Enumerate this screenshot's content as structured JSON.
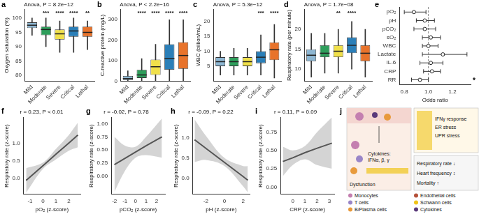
{
  "chart_data": [
    {
      "panel": "a",
      "type": "box",
      "title": "Anova, P = 8.2e−12",
      "y_label": "Oxygen saturation (%)",
      "categories": [
        "Mild",
        "Moderate",
        "Severe",
        "Critical",
        "Lethal"
      ],
      "colors": [
        "#8db6d2",
        "#2e9e5b",
        "#f0e04a",
        "#2b7fb8",
        "#e8732b"
      ],
      "boxes": [
        {
          "whisker_low": 94,
          "q1": 96.5,
          "median": 97.5,
          "q3": 98.5,
          "whisker_high": 100
        },
        {
          "whisker_low": 90,
          "q1": 94,
          "median": 96,
          "q3": 97,
          "whisker_high": 100
        },
        {
          "whisker_low": 88,
          "q1": 92.5,
          "median": 94.5,
          "q3": 96,
          "whisker_high": 99
        },
        {
          "whisker_low": 88,
          "q1": 93.5,
          "median": 95.5,
          "q3": 97,
          "whisker_high": 100
        },
        {
          "whisker_low": 89,
          "q1": 93.5,
          "median": 95,
          "q3": 97,
          "whisker_high": 99
        }
      ],
      "significance": [
        "",
        "***",
        "****",
        "****",
        "**"
      ],
      "ylim": [
        78,
        103
      ],
      "yticks": [
        80,
        85,
        90,
        95,
        100
      ]
    },
    {
      "panel": "b",
      "type": "box",
      "title": "Anova, P < 2.2e−16",
      "y_label": "C-reactive protein (mg/L)",
      "categories": [
        "Mild",
        "Moderate",
        "Severe",
        "Critical",
        "Lethal"
      ],
      "colors": [
        "#8db6d2",
        "#2e9e5b",
        "#f0e04a",
        "#2b7fb8",
        "#e8732b"
      ],
      "boxes": [
        {
          "whisker_low": 0,
          "q1": 5,
          "median": 12,
          "q3": 25,
          "whisker_high": 50
        },
        {
          "whisker_low": 0,
          "q1": 15,
          "median": 30,
          "q3": 55,
          "whisker_high": 110
        },
        {
          "whisker_low": 0,
          "q1": 30,
          "median": 70,
          "q3": 105,
          "whisker_high": 180
        },
        {
          "whisker_low": 0,
          "q1": 55,
          "median": 110,
          "q3": 180,
          "whisker_high": 300
        },
        {
          "whisker_low": 0,
          "q1": 60,
          "median": 125,
          "q3": 190,
          "whisker_high": 300
        }
      ],
      "significance": [
        "",
        "****",
        "****",
        "****",
        "****"
      ],
      "ylim": [
        0,
        350
      ],
      "yticks": [
        0,
        100,
        200,
        300
      ]
    },
    {
      "panel": "c",
      "type": "box",
      "title": "Anova, P = 5.3e−12",
      "y_label": "WBC (billion/mL)",
      "categories": [
        "Mild",
        "Moderate",
        "Severe",
        "Critical",
        "Lethal"
      ],
      "colors": [
        "#8db6d2",
        "#2e9e5b",
        "#f0e04a",
        "#2b7fb8",
        "#e8732b"
      ],
      "boxes": [
        {
          "whisker_low": 2,
          "q1": 5,
          "median": 6.5,
          "q3": 8,
          "whisker_high": 10
        },
        {
          "whisker_low": 2,
          "q1": 5,
          "median": 6.5,
          "q3": 8,
          "whisker_high": 11
        },
        {
          "whisker_low": 2,
          "q1": 5,
          "median": 6.5,
          "q3": 8,
          "whisker_high": 11
        },
        {
          "whisker_low": 2,
          "q1": 6,
          "median": 8,
          "q3": 10,
          "whisker_high": 15.5
        },
        {
          "whisker_low": 1,
          "q1": 7,
          "median": 10.5,
          "q3": 13,
          "whisker_high": 19
        }
      ],
      "significance": [
        "",
        "",
        "",
        "***",
        "****"
      ],
      "ylim": [
        0,
        24
      ],
      "yticks": [
        5,
        10,
        15,
        20
      ]
    },
    {
      "panel": "d",
      "type": "box",
      "title": "Anova, P = 1.7e−08",
      "y_label": "Respiratory rate (per minute)",
      "categories": [
        "Mild",
        "Moderate",
        "Severe",
        "Critical",
        "Lethal"
      ],
      "colors": [
        "#8db6d2",
        "#2e9e5b",
        "#f0e04a",
        "#2b7fb8",
        "#e8732b"
      ],
      "boxes": [
        {
          "whisker_low": 8,
          "q1": 12,
          "median": 13.5,
          "q3": 15,
          "whisker_high": 19
        },
        {
          "whisker_low": 9,
          "q1": 13,
          "median": 14,
          "q3": 16,
          "whisker_high": 19
        },
        {
          "whisker_low": 9,
          "q1": 13,
          "median": 14.5,
          "q3": 16,
          "whisker_high": 20
        },
        {
          "whisker_low": 10,
          "q1": 14,
          "median": 16,
          "q3": 18,
          "whisker_high": 22
        },
        {
          "whisker_low": 8,
          "q1": 12,
          "median": 14,
          "q3": 16,
          "whisker_high": 20
        }
      ],
      "significance": [
        "",
        "",
        "**",
        "****",
        ""
      ],
      "ylim": [
        7,
        25
      ],
      "yticks": [
        10,
        15,
        20
      ]
    },
    {
      "panel": "e",
      "type": "forest",
      "x_label": "Odds ratio",
      "categories": [
        "pO₂",
        "pH",
        "pCO₂",
        "sO₂",
        "WBC",
        "Lactate",
        "IL-6",
        "CRP",
        "RR"
      ],
      "values": [
        0.88,
        0.97,
        0.97,
        1.02,
        1.0,
        1.12,
        1.02,
        1.03,
        0.93
      ],
      "ci_lower": [
        0.8,
        0.9,
        0.88,
        0.95,
        0.95,
        0.95,
        0.93,
        0.96,
        0.86
      ],
      "ci_upper": [
        0.98,
        1.05,
        1.06,
        1.1,
        1.08,
        1.32,
        1.12,
        1.1,
        1.0
      ],
      "significance": [
        "",
        "",
        "",
        "",
        "",
        "",
        "",
        "",
        "*"
      ],
      "reference_line": 1,
      "xlim": [
        0.76,
        1.35
      ],
      "xticks": [
        {
          "value": 0.8,
          "label": "0.8"
        },
        {
          "value": 1.0,
          "label": "1.0"
        },
        {
          "value": 1.2,
          "label": "1.2"
        }
      ]
    },
    {
      "panel": "f",
      "type": "regression",
      "title": "r = 0.23, P < 0.01",
      "x_label": "pO₂ (z-score)",
      "y_label": "Respiratory rate (z-score)",
      "x": [
        -1.3,
        0,
        1,
        2,
        2.7
      ],
      "values": [
        -0.05,
        0.37,
        0.7,
        1.02,
        1.25
      ],
      "ci_lower": [
        -0.4,
        0.28,
        0.55,
        0.8,
        0.9
      ],
      "ci_upper": [
        0.3,
        0.46,
        0.85,
        1.25,
        1.6
      ],
      "xlim": [
        -1.5,
        2.9
      ],
      "xticks": [
        -1,
        0,
        1,
        2
      ],
      "ylim": [
        -0.45,
        1.75
      ],
      "yticks": [
        {
          "value": 0,
          "label": "0.0"
        },
        {
          "value": 0.5,
          "label": "0.5"
        },
        {
          "value": 1,
          "label": "1.0"
        }
      ]
    },
    {
      "panel": "g",
      "type": "regression",
      "title": "r = -0.02, P = 0.78",
      "x_label": "pCO₂ (z-score)",
      "y_label": "Respiratory rate (z-score)",
      "x": [
        -2,
        -1,
        0,
        1,
        2.5
      ],
      "values": [
        0.22,
        0.34,
        0.46,
        0.58,
        0.75
      ],
      "ci_lower": [
        -0.3,
        0.1,
        0.35,
        0.4,
        0.35
      ],
      "ci_upper": [
        0.75,
        0.58,
        0.56,
        0.75,
        1.1
      ],
      "xlim": [
        -2.3,
        2.8
      ],
      "xticks": [
        -2,
        -1,
        0,
        1,
        2
      ],
      "ylim": [
        -0.35,
        1.12
      ],
      "yticks": [
        {
          "value": 0,
          "label": "0.00"
        },
        {
          "value": 0.25,
          "label": "0.25"
        },
        {
          "value": 0.5,
          "label": "0.50"
        },
        {
          "value": 0.75,
          "label": "0.75"
        },
        {
          "value": 1,
          "label": "1.00"
        }
      ]
    },
    {
      "panel": "h",
      "type": "regression",
      "title": "r = -0.09, P = 0.22",
      "x_label": "pH (z-score)",
      "y_label": "Respiratory rate (z-score)",
      "x": [
        -3.2,
        -2,
        0,
        2,
        2.5
      ],
      "values": [
        0.95,
        0.74,
        0.39,
        0.04,
        -0.05
      ],
      "ci_lower": [
        0.4,
        0.45,
        0.3,
        -0.2,
        -0.35
      ],
      "ci_upper": [
        1.45,
        1.05,
        0.5,
        0.3,
        0.3
      ],
      "xlim": [
        -3.4,
        2.7
      ],
      "xticks": [
        -2,
        0,
        2
      ],
      "ylim": [
        -0.4,
        1.5
      ],
      "yticks": [
        {
          "value": 0,
          "label": "0.0"
        },
        {
          "value": 0.5,
          "label": "0.5"
        },
        {
          "value": 1,
          "label": "1.0"
        }
      ]
    },
    {
      "panel": "i",
      "type": "regression",
      "title": "r = 0.11, P = 0.09",
      "x_label": "CRP (z-score)",
      "y_label": "Respiratory rate (z-score)",
      "x": [
        -0.8,
        0,
        1,
        2,
        3.2
      ],
      "values": [
        0.35,
        0.4,
        0.47,
        0.53,
        0.6
      ],
      "ci_lower": [
        0.15,
        0.3,
        0.38,
        0.3,
        0.25
      ],
      "ci_upper": [
        0.55,
        0.5,
        0.56,
        0.75,
        0.95
      ],
      "xlim": [
        -1,
        3.4
      ],
      "xticks": [
        0,
        1,
        2,
        3
      ],
      "ylim": [
        -0.1,
        0.95
      ],
      "yticks": [
        {
          "value": 0,
          "label": "0.00"
        },
        {
          "value": 0.25,
          "label": "0.25"
        },
        {
          "value": 0.5,
          "label": "0.50"
        },
        {
          "value": 0.75,
          "label": "0.75"
        }
      ]
    }
  ],
  "diagram": {
    "panel": "j",
    "cytokine_box": [
      "Cytokines:",
      "IFNα, β, γ"
    ],
    "dysfunction": "Dysfunction",
    "stress_box": [
      "IFNγ response",
      "ER stress",
      "UPR stress"
    ],
    "outcome_box": [
      "Respiratory rate ↓",
      "Heart frequency ↕",
      "Mortality ↑"
    ],
    "legend": [
      {
        "label": "Monocytes",
        "color": "#c47fb0"
      },
      {
        "label": "T cells",
        "color": "#9a86c8"
      },
      {
        "label": "B/Plasma cells",
        "color": "#e89a3c"
      },
      {
        "label": "Endothelial cells",
        "color": "#b5523b"
      },
      {
        "label": "Schwann cells",
        "color": "#f0c419"
      },
      {
        "label": "Cytokines",
        "color": "#5a3a7a"
      }
    ]
  }
}
